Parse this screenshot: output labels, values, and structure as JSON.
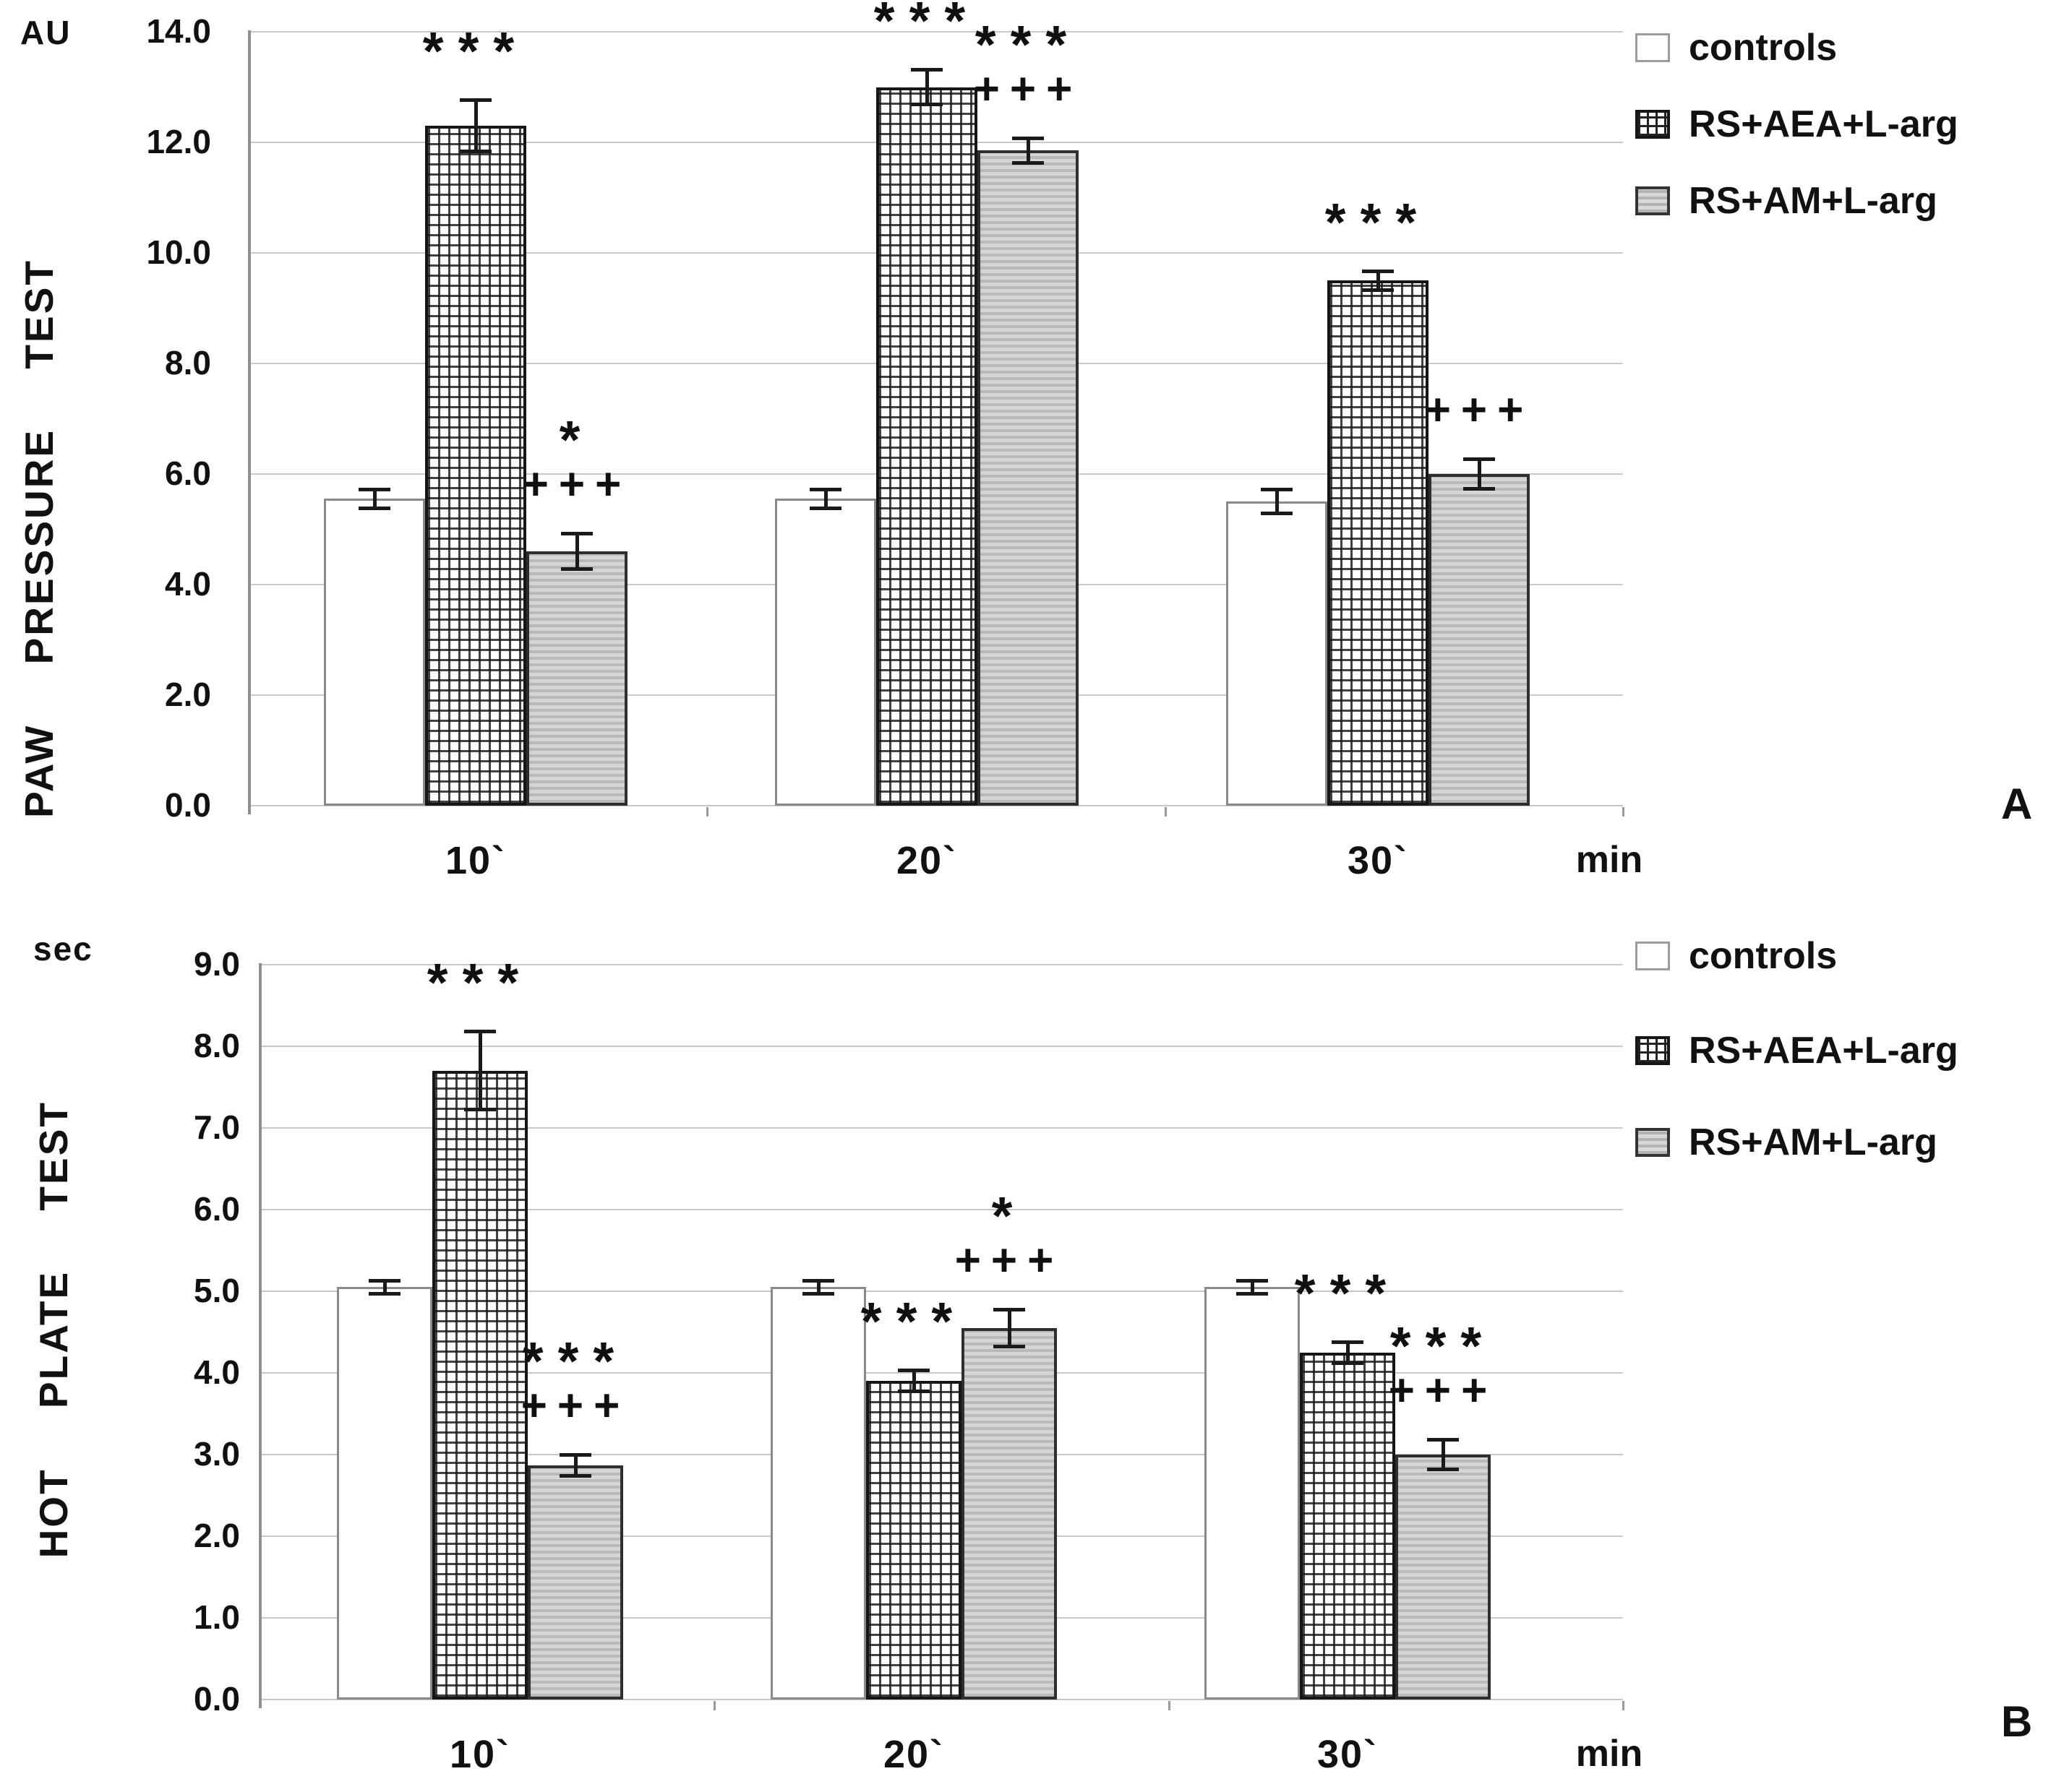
{
  "figure_type": "two-panel bar chart with error bars and significance marks",
  "chart_data": [
    {
      "type": "bar",
      "panel_letter": "A",
      "ylabel": "PAW PRESSURE TEST",
      "y_unit": "AU",
      "xlabel": "",
      "x_unit": "min",
      "categories": [
        "10`",
        "20`",
        "30`"
      ],
      "y_ticks": [
        "14.0",
        "12.0",
        "10.0",
        "8.0",
        "6.0",
        "4.0",
        "2.0",
        "0.0"
      ],
      "ylim": [
        0,
        14
      ],
      "y_step": 2,
      "grid": true,
      "legend_position": "top-right",
      "legend_labels": [
        "controls",
        "RS+AEA+L-arg",
        "RS+AM+L-arg"
      ],
      "series": [
        {
          "name": "controls",
          "values": [
            5.55,
            5.55,
            5.5
          ],
          "errors": [
            0.2,
            0.2,
            0.25
          ],
          "annotations": [
            [],
            [],
            []
          ]
        },
        {
          "name": "RS+AEA+L-arg",
          "values": [
            12.3,
            13.0,
            9.5
          ],
          "errors": [
            0.5,
            0.35,
            0.2
          ],
          "annotations": [
            [
              "***"
            ],
            [
              "***"
            ],
            [
              "***"
            ]
          ]
        },
        {
          "name": "RS+AM+L-arg",
          "values": [
            4.6,
            11.85,
            6.0
          ],
          "errors": [
            0.35,
            0.25,
            0.3
          ],
          "annotations": [
            [
              "*",
              "+++"
            ],
            [
              "***",
              "+++"
            ],
            [
              "+++"
            ]
          ]
        }
      ]
    },
    {
      "type": "bar",
      "panel_letter": "B",
      "ylabel": "HOT PLATE TEST",
      "y_unit": "sec",
      "xlabel": "",
      "x_unit": "min",
      "categories": [
        "10`",
        "20`",
        "30`"
      ],
      "y_ticks": [
        "9.0",
        "8.0",
        "7.0",
        "6.0",
        "5.0",
        "4.0",
        "3.0",
        "2.0",
        "1.0",
        "0.0"
      ],
      "ylim": [
        0,
        9
      ],
      "y_step": 1,
      "grid": true,
      "legend_position": "top-right",
      "legend_labels": [
        "controls",
        "RS+AEA+L-arg",
        "RS+AM+L-arg"
      ],
      "series": [
        {
          "name": "controls",
          "values": [
            5.05,
            5.05,
            5.05
          ],
          "errors": [
            0.1,
            0.1,
            0.1
          ],
          "annotations": [
            [],
            [],
            []
          ]
        },
        {
          "name": "RS+AEA+L-arg",
          "values": [
            7.7,
            3.9,
            4.25
          ],
          "errors": [
            0.5,
            0.15,
            0.15
          ],
          "annotations": [
            [
              "***"
            ],
            [
              "***"
            ],
            [
              "***"
            ]
          ]
        },
        {
          "name": "RS+AM+L-arg",
          "values": [
            2.87,
            4.55,
            3.0
          ],
          "errors": [
            0.15,
            0.25,
            0.2
          ],
          "annotations": [
            [
              "***",
              "+++"
            ],
            [
              "*",
              "+++"
            ],
            [
              "***",
              "+++"
            ]
          ]
        }
      ]
    }
  ]
}
